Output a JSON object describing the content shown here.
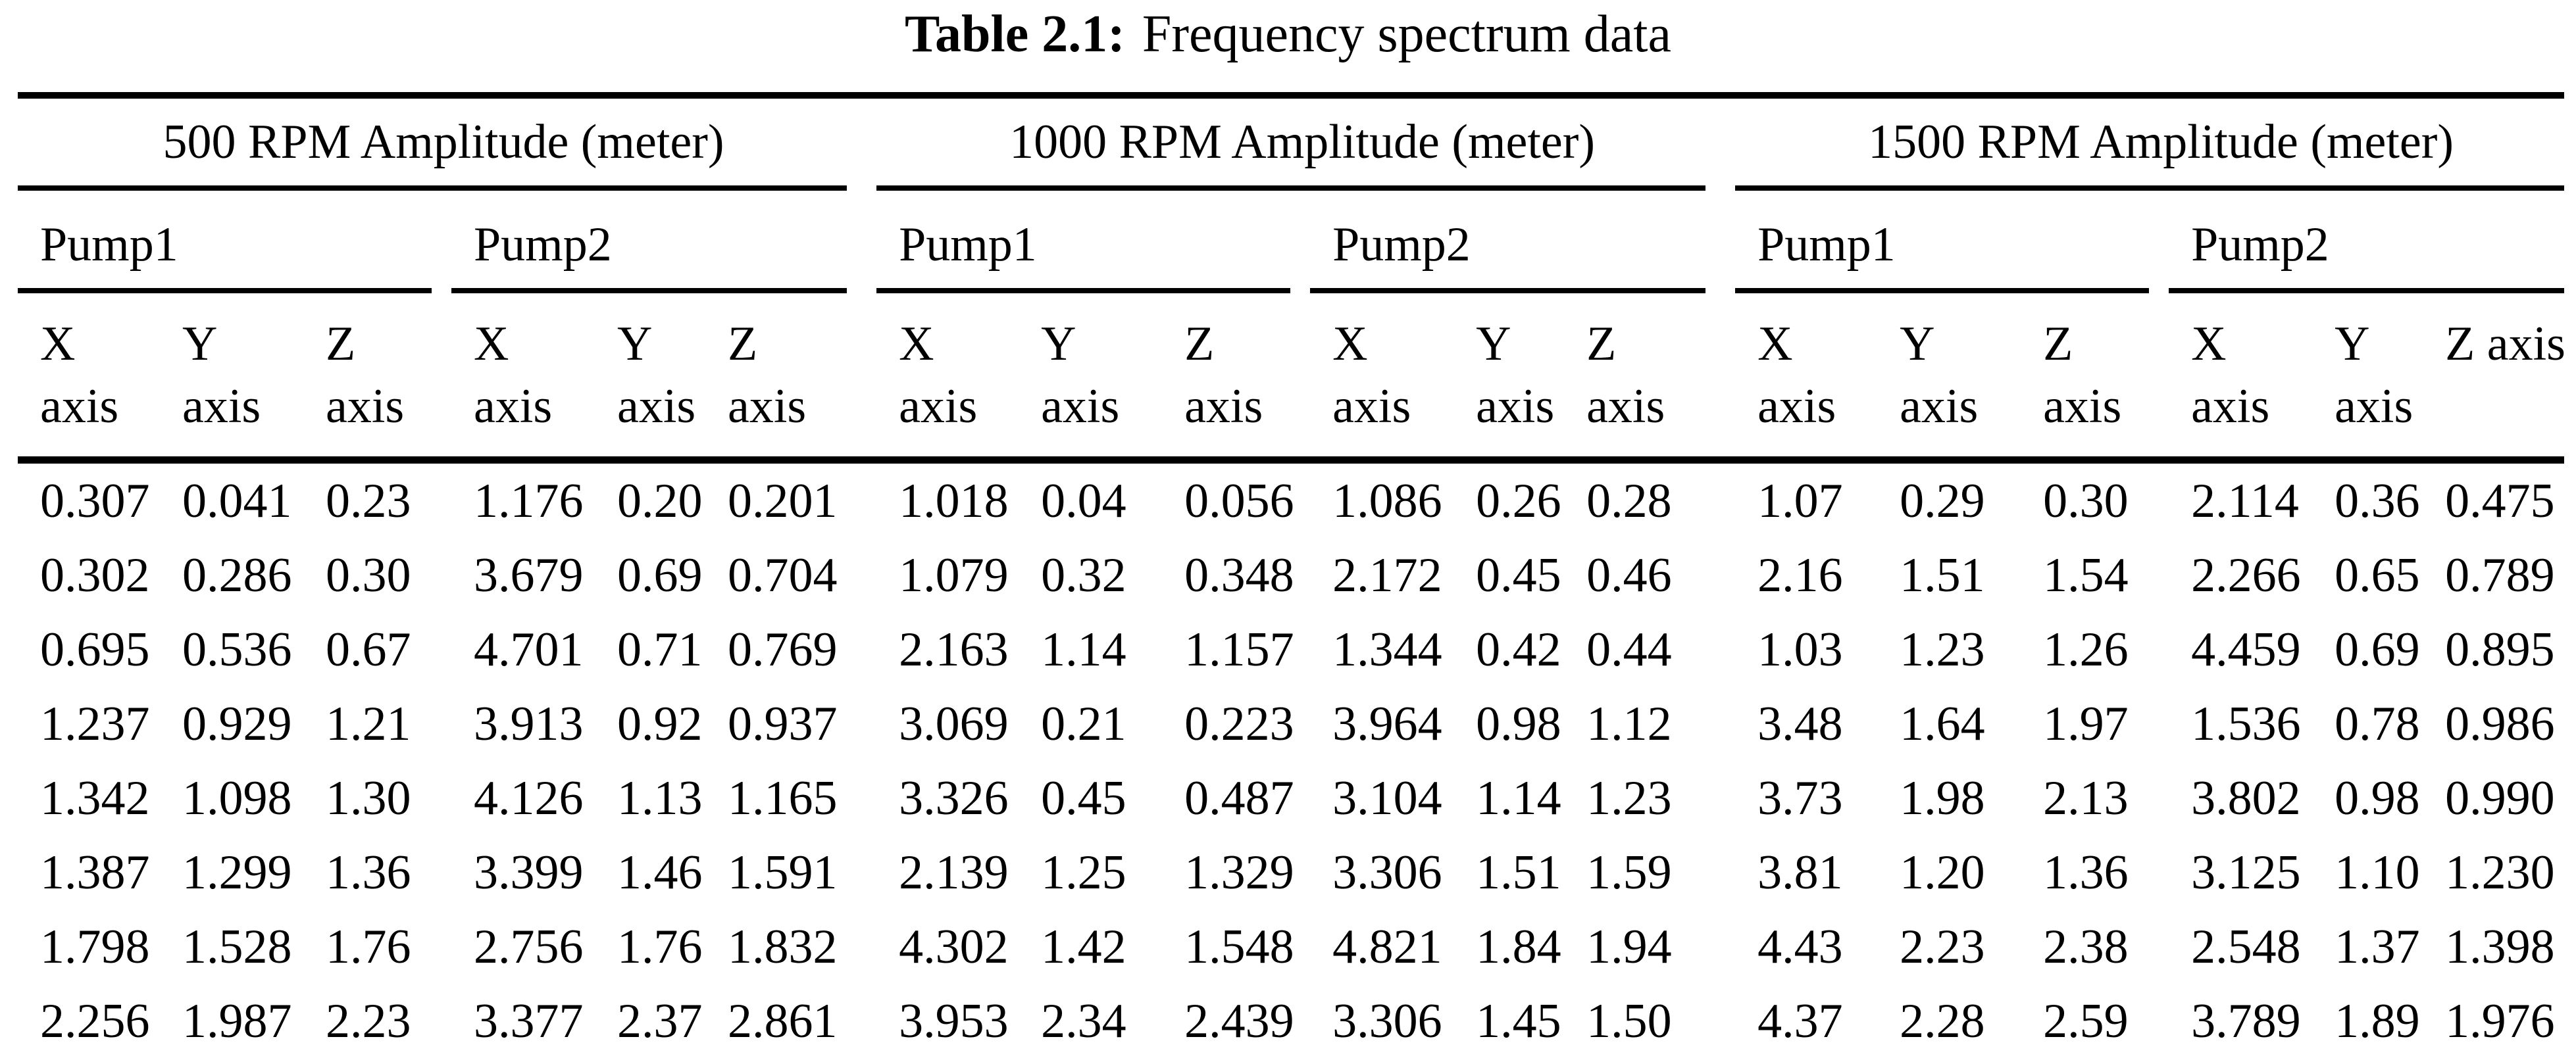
{
  "title": {
    "label": "Table 2.1:",
    "text": "Frequency spectrum data"
  },
  "table": {
    "groups": [
      {
        "label": "500 RPM Amplitude (meter)",
        "pumps": [
          {
            "label": "Pump1"
          },
          {
            "label": "Pump2"
          }
        ]
      },
      {
        "label": "1000 RPM Amplitude (meter)",
        "pumps": [
          {
            "label": "Pump1"
          },
          {
            "label": "Pump2"
          }
        ]
      },
      {
        "label": "1500 RPM Amplitude (meter)",
        "pumps": [
          {
            "label": "Pump1"
          },
          {
            "label": "Pump2"
          }
        ]
      }
    ],
    "axis_letters": [
      "X",
      "Y",
      "Z"
    ],
    "axis_word": "axis",
    "last_axis_header": "Z axis",
    "rows": [
      [
        "0.307",
        "0.041",
        "0.23",
        "1.176",
        "0.20",
        "0.201",
        "1.018",
        "0.04",
        "0.056",
        "1.086",
        "0.26",
        "0.28",
        "1.07",
        "0.29",
        "0.30",
        "2.114",
        "0.36",
        "0.475"
      ],
      [
        "0.302",
        "0.286",
        "0.30",
        "3.679",
        "0.69",
        "0.704",
        "1.079",
        "0.32",
        "0.348",
        "2.172",
        "0.45",
        "0.46",
        "2.16",
        "1.51",
        "1.54",
        "2.266",
        "0.65",
        "0.789"
      ],
      [
        "0.695",
        "0.536",
        "0.67",
        "4.701",
        "0.71",
        "0.769",
        "2.163",
        "1.14",
        "1.157",
        "1.344",
        "0.42",
        "0.44",
        "1.03",
        "1.23",
        "1.26",
        "4.459",
        "0.69",
        "0.895"
      ],
      [
        "1.237",
        "0.929",
        "1.21",
        "3.913",
        "0.92",
        "0.937",
        "3.069",
        "0.21",
        "0.223",
        "3.964",
        "0.98",
        "1.12",
        "3.48",
        "1.64",
        "1.97",
        "1.536",
        "0.78",
        "0.986"
      ],
      [
        "1.342",
        "1.098",
        "1.30",
        "4.126",
        "1.13",
        "1.165",
        "3.326",
        "0.45",
        "0.487",
        "3.104",
        "1.14",
        "1.23",
        "3.73",
        "1.98",
        "2.13",
        "3.802",
        "0.98",
        "0.990"
      ],
      [
        "1.387",
        "1.299",
        "1.36",
        "3.399",
        "1.46",
        "1.591",
        "2.139",
        "1.25",
        "1.329",
        "3.306",
        "1.51",
        "1.59",
        "3.81",
        "1.20",
        "1.36",
        "3.125",
        "1.10",
        "1.230"
      ],
      [
        "1.798",
        "1.528",
        "1.76",
        "2.756",
        "1.76",
        "1.832",
        "4.302",
        "1.42",
        "1.548",
        "4.821",
        "1.84",
        "1.94",
        "4.43",
        "2.23",
        "2.38",
        "2.548",
        "1.37",
        "1.398"
      ],
      [
        "2.256",
        "1.987",
        "2.23",
        "3.377",
        "2.37",
        "2.861",
        "3.953",
        "2.34",
        "2.439",
        "3.306",
        "1.45",
        "1.50",
        "4.37",
        "2.28",
        "2.59",
        "3.789",
        "1.89",
        "1.976"
      ]
    ]
  }
}
